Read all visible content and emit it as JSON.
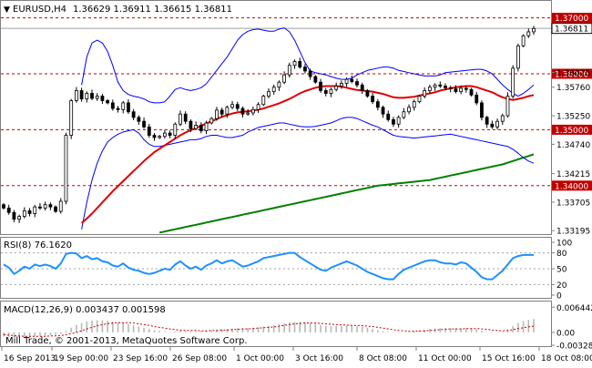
{
  "header": {
    "symbol": "EURUSD,H4",
    "ohlc": "1.36629 1.36911 1.36615 1.36811"
  },
  "copyright": "Mill Trade, © 2001-2013, MetaQuotes Software Corp.",
  "colors": {
    "background": "#ffffff",
    "frame": "#808080",
    "candle": "#000000",
    "bollinger": "#0000ff",
    "ma_fast": "#e00000",
    "ma_slow": "#008000",
    "rsi": "#1e90ff",
    "level_line": "#c00000",
    "macd_hist": "#b8b8b8",
    "macd_signal": "#c00000",
    "current_price_box": "#000000"
  },
  "chart_data": [
    {
      "panel": "price",
      "type": "candlestick",
      "ylim": [
        1.3315,
        1.3727
      ],
      "y_ticks": [
        "1.37000",
        "1.36811",
        "1.36025",
        "1.35760",
        "1.35250",
        "1.34740",
        "1.34215",
        "1.33705",
        "1.33195"
      ],
      "level_labels": [
        "1.37000",
        "1.36000",
        "1.35000",
        "1.34000"
      ],
      "levels": [
        1.37,
        1.36,
        1.35,
        1.34
      ],
      "current_price": "1.36811",
      "current_value": 1.36811,
      "series": {
        "close": [
          1.336,
          1.3352,
          1.334,
          1.3345,
          1.3355,
          1.335,
          1.3362,
          1.336,
          1.3366,
          1.3362,
          1.3354,
          1.3372,
          1.349,
          1.3552,
          1.357,
          1.3555,
          1.3565,
          1.3556,
          1.356,
          1.3552,
          1.3548,
          1.3538,
          1.3536,
          1.3548,
          1.3532,
          1.3522,
          1.3515,
          1.3505,
          1.349,
          1.3486,
          1.3488,
          1.3494,
          1.349,
          1.351,
          1.3528,
          1.3515,
          1.3502,
          1.3508,
          1.3498,
          1.3512,
          1.352,
          1.3535,
          1.3528,
          1.354,
          1.3545,
          1.3538,
          1.3528,
          1.353,
          1.3536,
          1.3545,
          1.356,
          1.3568,
          1.3576,
          1.3585,
          1.3598,
          1.3615,
          1.3622,
          1.3612,
          1.3605,
          1.3595,
          1.3585,
          1.357,
          1.3565,
          1.3572,
          1.3578,
          1.3583,
          1.359,
          1.3586,
          1.358,
          1.357,
          1.356,
          1.355,
          1.354,
          1.3528,
          1.3518,
          1.351,
          1.3522,
          1.3532,
          1.354,
          1.355,
          1.356,
          1.357,
          1.3576,
          1.358,
          1.3578,
          1.3575,
          1.3573,
          1.3568,
          1.3574,
          1.3572,
          1.3562,
          1.3548,
          1.3522,
          1.351,
          1.3505,
          1.3515,
          1.3525,
          1.356,
          1.361,
          1.365,
          1.3668,
          1.3675,
          1.3681
        ],
        "ma_fast": [
          null,
          null,
          null,
          null,
          null,
          null,
          null,
          null,
          null,
          null,
          null,
          null,
          null,
          null,
          null,
          1.3333,
          1.3341,
          1.335,
          1.336,
          1.337,
          1.338,
          1.339,
          1.3399,
          1.3408,
          1.3417,
          1.3426,
          1.3435,
          1.3444,
          1.3452,
          1.346,
          1.3466,
          1.3472,
          1.3478,
          1.3484,
          1.349,
          1.3495,
          1.3499,
          1.3503,
          1.3507,
          1.3511,
          1.3515,
          1.3519,
          1.3523,
          1.3526,
          1.3529,
          1.3531,
          1.3532,
          1.3533,
          1.3534,
          1.3536,
          1.3538,
          1.3541,
          1.3544,
          1.3547,
          1.3551,
          1.3555,
          1.356,
          1.3565,
          1.3569,
          1.3572,
          1.3575,
          1.3577,
          1.3578,
          1.3578,
          1.3578,
          1.3577,
          1.3575,
          1.3573,
          1.3571,
          1.357,
          1.3569,
          1.3568,
          1.3566,
          1.3564,
          1.3561,
          1.3558,
          1.3557,
          1.3557,
          1.3558,
          1.3559,
          1.3561,
          1.3563,
          1.3565,
          1.3567,
          1.357,
          1.3572,
          1.3574,
          1.3576,
          1.3577,
          1.3578,
          1.3578,
          1.3576,
          1.3573,
          1.357,
          1.3567,
          1.3562,
          1.3558,
          1.3555,
          1.3553,
          1.3555,
          1.3557,
          1.356,
          1.3562
        ],
        "ma_slow": [
          null,
          null,
          null,
          null,
          null,
          null,
          null,
          null,
          null,
          null,
          null,
          null,
          null,
          null,
          null,
          null,
          null,
          null,
          null,
          null,
          null,
          null,
          null,
          null,
          null,
          null,
          null,
          null,
          null,
          null,
          1.3316,
          1.3318,
          1.332,
          1.3322,
          1.3324,
          1.3326,
          1.3328,
          1.333,
          1.3332,
          1.3334,
          1.3336,
          1.3338,
          1.334,
          1.3342,
          1.3344,
          1.3346,
          1.3348,
          1.335,
          1.3352,
          1.3354,
          1.3356,
          1.3358,
          1.336,
          1.3362,
          1.3364,
          1.3366,
          1.3368,
          1.337,
          1.3372,
          1.3374,
          1.3376,
          1.3378,
          1.338,
          1.3382,
          1.3384,
          1.3386,
          1.3388,
          1.339,
          1.3392,
          1.3394,
          1.3396,
          1.3398,
          1.34,
          1.3401,
          1.3402,
          1.3403,
          1.3404,
          1.3405,
          1.3406,
          1.3407,
          1.3408,
          1.3409,
          1.341,
          1.3412,
          1.3414,
          1.3416,
          1.3418,
          1.342,
          1.3422,
          1.3424,
          1.3426,
          1.3428,
          1.343,
          1.3432,
          1.3434,
          1.3436,
          1.3438,
          1.3441,
          1.3444,
          1.3447,
          1.345,
          1.3453,
          1.3456
        ],
        "bb_upper": [
          null,
          null,
          null,
          null,
          null,
          null,
          null,
          null,
          null,
          null,
          null,
          null,
          null,
          null,
          null,
          1.358,
          1.363,
          1.3655,
          1.366,
          1.3655,
          1.364,
          1.3615,
          1.3585,
          1.357,
          1.3563,
          1.356,
          1.3558,
          1.3555,
          1.355,
          1.3548,
          1.3548,
          1.355,
          1.356,
          1.3572,
          1.3575,
          1.3572,
          1.357,
          1.3572,
          1.3575,
          1.3582,
          1.3594,
          1.3606,
          1.3618,
          1.363,
          1.3645,
          1.366,
          1.367,
          1.3676,
          1.3679,
          1.368,
          1.3678,
          1.3676,
          1.3676,
          1.368,
          1.3682,
          1.3675,
          1.366,
          1.364,
          1.362,
          1.3605,
          1.3602,
          1.36,
          1.3598,
          1.3595,
          1.3592,
          1.359,
          1.359,
          1.3592,
          1.3598,
          1.3602,
          1.3606,
          1.3608,
          1.361,
          1.3612,
          1.3612,
          1.361,
          1.3606,
          1.3604,
          1.3602,
          1.36,
          1.3598,
          1.3596,
          1.3596,
          1.3596,
          1.3598,
          1.3602,
          1.3603,
          1.3604,
          1.3605,
          1.3606,
          1.3607,
          1.3608,
          1.3608,
          1.3605,
          1.36,
          1.359,
          1.358,
          1.3572,
          1.3565,
          1.356,
          1.3565,
          1.3572,
          1.358
        ],
        "bb_lower": [
          null,
          null,
          null,
          null,
          null,
          null,
          null,
          null,
          null,
          null,
          null,
          null,
          null,
          null,
          null,
          1.3322,
          1.337,
          1.341,
          1.344,
          1.3462,
          1.3478,
          1.3486,
          1.3492,
          1.3496,
          1.3498,
          1.35,
          1.3494,
          1.3482,
          1.3474,
          1.347,
          1.347,
          1.3472,
          1.3474,
          1.3476,
          1.3478,
          1.348,
          1.3482,
          1.3482,
          1.3484,
          1.3488,
          1.349,
          1.349,
          1.3488,
          1.3486,
          1.3486,
          1.3488,
          1.349,
          1.3496,
          1.35,
          1.3504,
          1.3506,
          1.3508,
          1.351,
          1.3512,
          1.3512,
          1.351,
          1.3508,
          1.3506,
          1.3505,
          1.3505,
          1.3506,
          1.3508,
          1.351,
          1.3512,
          1.3516,
          1.352,
          1.3522,
          1.3522,
          1.352,
          1.3516,
          1.3512,
          1.3508,
          1.3505,
          1.35,
          1.3495,
          1.349,
          1.3488,
          1.3487,
          1.3486,
          1.3485,
          1.3486,
          1.3487,
          1.3488,
          1.3489,
          1.349,
          1.3491,
          1.3492,
          1.349,
          1.3488,
          1.3486,
          1.3484,
          1.3482,
          1.348,
          1.3478,
          1.3476,
          1.3474,
          1.3472,
          1.347,
          1.3465,
          1.3458,
          1.345,
          1.3444,
          1.344
        ]
      }
    },
    {
      "panel": "rsi",
      "type": "line",
      "title": "RSI(8) 76.1620",
      "ylim": [
        0,
        100
      ],
      "y_ticks": [
        "100",
        "80",
        "50",
        "20",
        "0"
      ],
      "levels": [
        80,
        50,
        20
      ],
      "values": [
        58,
        52,
        40,
        46,
        54,
        50,
        58,
        55,
        58,
        55,
        50,
        60,
        78,
        80,
        79,
        70,
        74,
        68,
        70,
        64,
        62,
        56,
        54,
        60,
        52,
        48,
        46,
        42,
        40,
        42,
        46,
        50,
        48,
        58,
        64,
        56,
        50,
        54,
        48,
        56,
        60,
        66,
        60,
        64,
        66,
        60,
        54,
        56,
        60,
        64,
        70,
        72,
        74,
        76,
        78,
        80,
        80,
        72,
        66,
        60,
        54,
        48,
        46,
        52,
        56,
        60,
        64,
        60,
        56,
        50,
        44,
        40,
        36,
        32,
        30,
        30,
        40,
        48,
        52,
        56,
        60,
        64,
        66,
        66,
        62,
        60,
        60,
        58,
        62,
        60,
        52,
        44,
        34,
        30,
        30,
        38,
        46,
        58,
        70,
        74,
        76,
        76,
        76
      ]
    },
    {
      "panel": "macd",
      "type": "bar+line",
      "title": "MACD(12,26,9) 0.003437 0.001598",
      "ylim": [
        -0.0035,
        0.0072
      ],
      "y_ticks": [
        "0.006442",
        "0.00",
        "-0.003285"
      ],
      "histogram": [
        -0.001,
        -0.0011,
        -0.0012,
        -0.0012,
        -0.0012,
        -0.0011,
        -0.001,
        -0.0009,
        -0.0008,
        -0.0007,
        -0.0006,
        -0.0004,
        0.0004,
        0.0012,
        0.0019,
        0.0024,
        0.0028,
        0.003,
        0.0031,
        0.0031,
        0.003,
        0.0028,
        0.0026,
        0.0024,
        0.0021,
        0.0018,
        0.0015,
        0.0012,
        0.0009,
        0.0006,
        0.0004,
        0.0002,
        0.0001,
        0.0002,
        0.0004,
        0.0004,
        0.0003,
        0.0003,
        0.0003,
        0.0004,
        0.0005,
        0.0007,
        0.0008,
        0.0009,
        0.001,
        0.0011,
        0.0011,
        0.0011,
        0.0012,
        0.0013,
        0.0015,
        0.0017,
        0.0019,
        0.0021,
        0.0023,
        0.0026,
        0.0027,
        0.0027,
        0.0026,
        0.0024,
        0.0022,
        0.0019,
        0.0017,
        0.0016,
        0.0016,
        0.0016,
        0.0017,
        0.0017,
        0.0016,
        0.0014,
        0.0012,
        0.0009,
        0.0006,
        0.0003,
        0.0001,
        -0.0001,
        -0.0001,
        0.0,
        0.0001,
        0.0003,
        0.0005,
        0.0007,
        0.0009,
        0.001,
        0.0011,
        0.0011,
        0.0011,
        0.0011,
        0.0011,
        0.0011,
        0.001,
        0.0008,
        0.0004,
        0.0001,
        -0.0001,
        0.0,
        0.0002,
        0.0008,
        0.0016,
        0.0024,
        0.0029,
        0.0032,
        0.0034
      ],
      "signal": [
        -0.0006,
        -0.0007,
        -0.0008,
        -0.0009,
        -0.001,
        -0.001,
        -0.001,
        -0.001,
        -0.001,
        -0.0009,
        -0.0009,
        -0.0008,
        -0.0006,
        -0.0003,
        0.0,
        0.0004,
        0.0009,
        0.0013,
        0.0017,
        0.002,
        0.0022,
        0.0024,
        0.0025,
        0.0025,
        0.0025,
        0.0024,
        0.0022,
        0.002,
        0.0018,
        0.0015,
        0.0013,
        0.0011,
        0.0009,
        0.0007,
        0.0006,
        0.0005,
        0.0005,
        0.0005,
        0.0004,
        0.0004,
        0.0005,
        0.0005,
        0.0006,
        0.0006,
        0.0007,
        0.0008,
        0.0009,
        0.0009,
        0.001,
        0.0011,
        0.0012,
        0.0013,
        0.0014,
        0.0016,
        0.0018,
        0.002,
        0.0022,
        0.0023,
        0.0024,
        0.0024,
        0.0024,
        0.0023,
        0.0022,
        0.0021,
        0.002,
        0.0019,
        0.0019,
        0.0018,
        0.0018,
        0.0017,
        0.0016,
        0.0015,
        0.0013,
        0.0011,
        0.0009,
        0.0007,
        0.0005,
        0.0004,
        0.0003,
        0.0003,
        0.0004,
        0.0004,
        0.0005,
        0.0006,
        0.0007,
        0.0008,
        0.0009,
        0.0009,
        0.0009,
        0.001,
        0.001,
        0.001,
        0.0009,
        0.0008,
        0.0006,
        0.0005,
        0.0004,
        0.0005,
        0.0007,
        0.001,
        0.0012,
        0.0014,
        0.0016
      ]
    }
  ],
  "x_labels": [
    "16 Sep 2013",
    "19 Sep 00:00",
    "23 Sep 16:00",
    "26 Sep 08:00",
    "1 Oct 00:00",
    "3 Oct 16:00",
    "8 Oct 08:00",
    "11 Oct 00:00",
    "15 Oct 16:00",
    "18 Oct 08:00"
  ],
  "x_label_bar_index": [
    0,
    11,
    24,
    37,
    51,
    64,
    78,
    91,
    105,
    118
  ]
}
